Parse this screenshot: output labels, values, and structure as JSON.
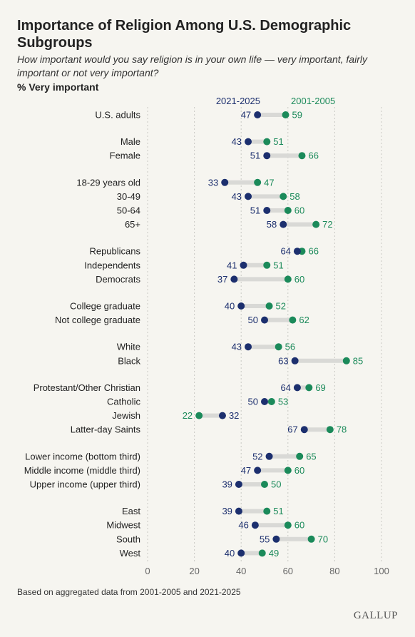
{
  "title": "Importance of Religion Among U.S. Demographic Subgroups",
  "subtitle": "How important would you say religion is in your own life — very important, fairly important or not very important?",
  "unit_label": "% Very important",
  "footnote": "Based on aggregated data from 2001-2005 and 2021-2025",
  "brand": "GALLUP",
  "chart_data": {
    "type": "dumbbell",
    "categories": [
      "U.S. adults",
      "Male",
      "Female",
      "18-29 years old",
      "30-49",
      "50-64",
      "65+",
      "Republicans",
      "Independents",
      "Democrats",
      "College graduate",
      "Not college graduate",
      "White",
      "Black",
      "Protestant/Other Christian",
      "Catholic",
      "Jewish",
      "Latter-day Saints",
      "Lower income (bottom third)",
      "Middle income (middle third)",
      "Upper income (upper third)",
      "East",
      "Midwest",
      "South",
      "West"
    ],
    "groups": [
      [
        "U.S. adults"
      ],
      [
        "Male",
        "Female"
      ],
      [
        "18-29 years old",
        "30-49",
        "50-64",
        "65+"
      ],
      [
        "Republicans",
        "Independents",
        "Democrats"
      ],
      [
        "College graduate",
        "Not college graduate"
      ],
      [
        "White",
        "Black"
      ],
      [
        "Protestant/Other Christian",
        "Catholic",
        "Jewish",
        "Latter-day Saints"
      ],
      [
        "Lower income (bottom third)",
        "Middle income (middle third)",
        "Upper income (upper third)"
      ],
      [
        "East",
        "Midwest",
        "South",
        "West"
      ]
    ],
    "series": [
      {
        "name": "2021-2025",
        "color": "#1c2f6e",
        "values": [
          47,
          43,
          51,
          33,
          43,
          51,
          58,
          64,
          41,
          37,
          40,
          50,
          43,
          63,
          64,
          50,
          32,
          67,
          52,
          47,
          39,
          39,
          46,
          55,
          40
        ]
      },
      {
        "name": "2001-2005",
        "color": "#1b8a5a",
        "values": [
          59,
          51,
          66,
          47,
          58,
          60,
          72,
          66,
          51,
          60,
          52,
          62,
          56,
          85,
          69,
          53,
          22,
          78,
          65,
          60,
          50,
          51,
          60,
          70,
          49
        ]
      }
    ],
    "xlim": [
      0,
      100
    ],
    "xticks": [
      0,
      20,
      40,
      60,
      80,
      100
    ],
    "grid": true,
    "legend_placement": "top, above first row",
    "connector_color": "#d9d9d6"
  }
}
